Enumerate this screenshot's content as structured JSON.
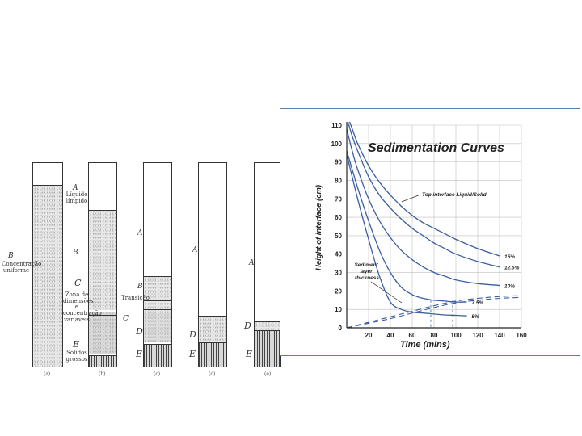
{
  "panel_a": {
    "tube_captions": [
      "(a)",
      "(b)",
      "(c)",
      "(d)",
      "(e)"
    ],
    "labels": {
      "concentracao": "Concentração uniforme",
      "liquido": "Líquido límpido",
      "zona": "Zona de dimensões e concentração variáveis",
      "solidos": "Sólidos grossos",
      "transicao": "Transição"
    },
    "letters": {
      "B": "B",
      "A": "A",
      "C": "C",
      "D": "D",
      "E": "E"
    }
  },
  "chart_data": {
    "type": "line",
    "title": "Sedimentation Curves",
    "xlabel": "Time (mins)",
    "ylabel": "Height of interface (cm)",
    "xlim": [
      0,
      160
    ],
    "ylim": [
      0,
      110
    ],
    "xticks": [
      20,
      40,
      60,
      80,
      100,
      120,
      140,
      160
    ],
    "yticks": [
      0,
      10,
      20,
      30,
      40,
      50,
      60,
      70,
      80,
      90,
      100,
      110
    ],
    "x_origin_label": "0",
    "series": [
      {
        "name": "15%",
        "x": [
          0,
          5,
          10,
          20,
          30,
          40,
          50,
          60,
          70,
          80,
          90,
          100,
          120,
          140
        ],
        "y": [
          116,
          108,
          100,
          88,
          79,
          72,
          66,
          61,
          57,
          54,
          51,
          48,
          43,
          39
        ]
      },
      {
        "name": "12.5%",
        "x": [
          0,
          5,
          10,
          20,
          30,
          40,
          50,
          60,
          70,
          80,
          90,
          100,
          120,
          140
        ],
        "y": [
          114,
          104,
          96,
          82,
          72,
          65,
          59,
          54,
          50,
          46,
          43,
          40,
          36,
          33
        ]
      },
      {
        "name": "10%",
        "x": [
          0,
          5,
          10,
          20,
          30,
          40,
          50,
          60,
          70,
          80,
          90,
          100,
          120,
          140
        ],
        "y": [
          108,
          96,
          86,
          70,
          58,
          49,
          42,
          37,
          33,
          30,
          28,
          26,
          24,
          23
        ]
      },
      {
        "name": "7.5%",
        "x": [
          0,
          10,
          20,
          30,
          40,
          50,
          60,
          70,
          80,
          90,
          100,
          110
        ],
        "y": [
          96,
          76,
          58,
          42,
          30,
          22,
          18,
          16,
          15,
          14.5,
          14,
          14
        ]
      },
      {
        "name": "5%",
        "x": [
          0,
          10,
          20,
          30,
          40,
          50,
          60,
          70,
          80,
          90,
          100,
          110
        ],
        "y": [
          94,
          70,
          48,
          28,
          14,
          10,
          8.5,
          8,
          7.5,
          7,
          6.8,
          6.5
        ]
      }
    ],
    "sediment_series": [
      {
        "x": [
          0,
          20,
          40,
          60,
          80,
          100,
          120,
          140,
          160
        ],
        "y": [
          0,
          3,
          6,
          9,
          12,
          14.5,
          16,
          17,
          17.5
        ]
      },
      {
        "x": [
          0,
          20,
          40,
          60,
          80,
          100,
          120,
          140,
          160
        ],
        "y": [
          0,
          2.5,
          5,
          8,
          11,
          13.5,
          15,
          16,
          16.5
        ]
      }
    ],
    "dashed_verticals_x": [
      77,
      97
    ],
    "annotations": {
      "top_interface": "Top interface Liquid/Solid",
      "sediment": "Sediment layer thickness"
    },
    "colors": {
      "curve": "#3a5ea0",
      "axis": "#222222",
      "grid": "#bfbfbf",
      "title": "#222222"
    }
  }
}
